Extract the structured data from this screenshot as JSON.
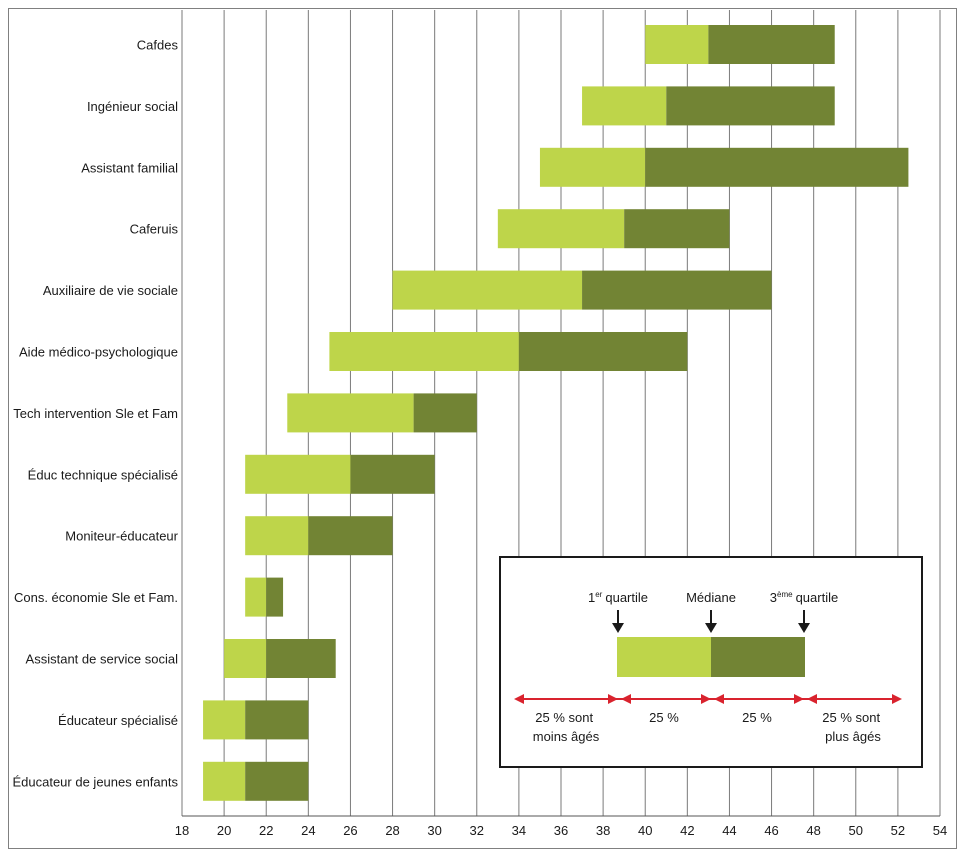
{
  "chart_data": {
    "type": "bar",
    "categories": [
      "Cafdes",
      "Ingénieur social",
      "Assistant familial",
      "Caferuis",
      "Auxiliaire de vie sociale",
      "Aide médico-psychologique",
      "Tech intervention Sle et Fam",
      "Éduc technique spécialisé",
      "Moniteur-éducateur",
      "Cons. économie Sle et Fam.",
      "Assistant de service social",
      "Éducateur spécialisé",
      "Éducateur de jeunes enfants"
    ],
    "series": [
      {
        "name": "1er quartile",
        "values": [
          40,
          37,
          35,
          33,
          28,
          25,
          23,
          21,
          21,
          21,
          20,
          19,
          19
        ]
      },
      {
        "name": "Médiane",
        "values": [
          43,
          41,
          40,
          39,
          37,
          34,
          29,
          26,
          24,
          22,
          22,
          21,
          21
        ]
      },
      {
        "name": "3ème quartile",
        "values": [
          49,
          49,
          52.5,
          44,
          46,
          42,
          32,
          30,
          28,
          22.8,
          25.3,
          24,
          24
        ]
      }
    ],
    "xlim": [
      18,
      54
    ],
    "xticks": [
      18,
      20,
      22,
      24,
      26,
      28,
      30,
      32,
      34,
      36,
      38,
      40,
      42,
      44,
      46,
      48,
      50,
      52,
      54
    ],
    "grid": "vertical",
    "colors": {
      "lower": "#bed54a",
      "upper": "#728434",
      "arrow": "#d9232e"
    },
    "legend": {
      "position": "bottom-right",
      "q1_label": "1",
      "q1_sup": "er",
      "q1_word": "quartile",
      "median_label": "Médiane",
      "q3_label": "3",
      "q3_sup": "ème",
      "q3_word": "quartile",
      "segments": [
        [
          "25 % sont",
          "moins âgés"
        ],
        [
          "25 %"
        ],
        [
          "25 %"
        ],
        [
          "25 % sont",
          "plus âgés"
        ]
      ]
    }
  }
}
